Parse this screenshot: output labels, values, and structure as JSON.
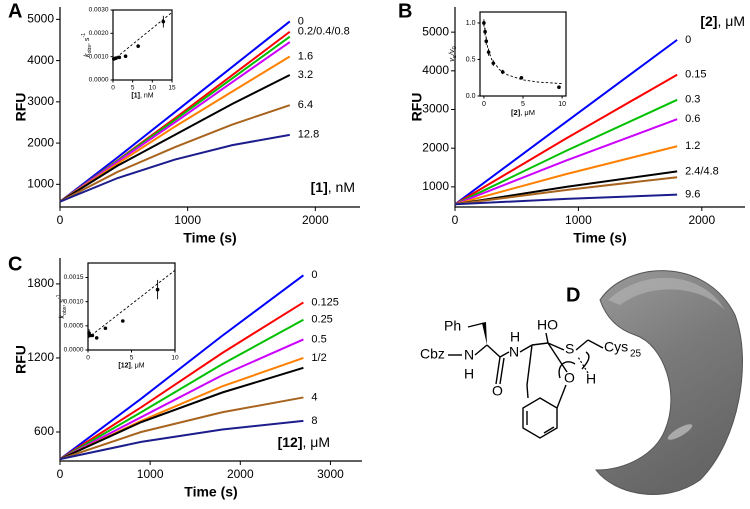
{
  "chart_data": [
    {
      "type": "line",
      "panel": "A",
      "xlabel": "Time (s)",
      "ylabel": "RFU",
      "annotation": [
        {
          "text": "[1]",
          "style": "bold"
        },
        {
          "text": ", nM",
          "style": "plain"
        }
      ],
      "xlim": [
        0,
        2350
      ],
      "ylim": [
        450,
        5300
      ],
      "xticks": [
        0,
        1000,
        2000
      ],
      "yticks": [
        1000,
        2000,
        3000,
        4000,
        5000
      ],
      "x": [
        0,
        450,
        900,
        1350,
        1800
      ],
      "series": [
        {
          "name": "0",
          "color": "#0000ff",
          "values": [
            580,
            1650,
            2750,
            3850,
            4950
          ]
        },
        {
          "name": "0.2/0.4/0.8",
          "color": "#ff0000",
          "values": [
            580,
            1580,
            2600,
            3650,
            4700
          ]
        },
        {
          "color": "#00c000",
          "values": [
            580,
            1570,
            2560,
            3570,
            4580
          ]
        },
        {
          "color": "#cc00ff",
          "values": [
            580,
            1550,
            2500,
            3480,
            4450
          ]
        },
        {
          "name": "1.6",
          "color": "#ff8000",
          "values": [
            580,
            1500,
            2400,
            3250,
            4100
          ]
        },
        {
          "name": "3.2",
          "color": "#000000",
          "values": [
            580,
            1450,
            2200,
            2950,
            3650
          ]
        },
        {
          "name": "6.4",
          "color": "#a8641e",
          "values": [
            580,
            1300,
            1900,
            2450,
            2920
          ]
        },
        {
          "name": "12.8",
          "color": "#1c1c8c",
          "values": [
            580,
            1150,
            1600,
            1950,
            2200
          ]
        }
      ],
      "inset": {
        "type": "scatter",
        "xlabel": [
          {
            "text": "[1]",
            "style": "bold"
          },
          {
            "text": ", nM",
            "style": "plain"
          }
        ],
        "ylabel": [
          {
            "text": "k",
            "style": "italic"
          },
          {
            "text": "obs",
            "style": "sub"
          },
          {
            "text": ", s",
            "style": "plain"
          },
          {
            "text": "-1",
            "style": "sup"
          }
        ],
        "xlim": [
          0,
          15
        ],
        "ylim": [
          0,
          0.003
        ],
        "xticks": [
          0,
          5,
          10,
          15
        ],
        "yticks": [
          {
            "value": 0,
            "label": "0.0000"
          },
          {
            "value": 0.001,
            "label": "0.0010"
          },
          {
            "value": 0.002,
            "label": "0.0020"
          },
          {
            "value": 0.003,
            "label": "0.0030"
          }
        ],
        "x": [
          0.2,
          0.4,
          0.8,
          1.6,
          3.2,
          6.4,
          12.8
        ],
        "values": [
          0.0009,
          0.00092,
          0.00094,
          0.00097,
          0.00102,
          0.00145,
          0.0025
        ],
        "errors": [
          5e-05,
          0,
          0,
          0,
          0,
          8e-05,
          0.00025
        ],
        "fit": {
          "x": [
            0,
            15
          ],
          "values": [
            0.00085,
            0.0029
          ]
        }
      }
    },
    {
      "type": "line",
      "panel": "B",
      "xlabel": "Time (s)",
      "ylabel": "RFU",
      "annotation": [
        {
          "text": "[2]",
          "style": "bold"
        },
        {
          "text": ", μM",
          "style": "plain"
        }
      ],
      "xlim": [
        0,
        2350
      ],
      "ylim": [
        480,
        5650
      ],
      "xticks": [
        0,
        1000,
        2000
      ],
      "yticks": [
        1000,
        2000,
        3000,
        4000,
        5000
      ],
      "x": [
        0,
        900,
        1800
      ],
      "series": [
        {
          "name": "0",
          "color": "#0000ff",
          "values": [
            550,
            2680,
            4800
          ]
        },
        {
          "name": "0.15",
          "color": "#ff0000",
          "values": [
            550,
            2250,
            3900
          ]
        },
        {
          "name": "0.3",
          "color": "#00c000",
          "values": [
            550,
            1930,
            3250
          ]
        },
        {
          "name": "0.6",
          "color": "#cc00ff",
          "values": [
            550,
            1680,
            2750
          ]
        },
        {
          "name": "1.2",
          "color": "#ff8000",
          "values": [
            550,
            1330,
            2050
          ]
        },
        {
          "name": "2.4/4.8",
          "color": "#000000",
          "values": [
            550,
            1000,
            1400
          ]
        },
        {
          "color": "#a8641e",
          "values": [
            550,
            920,
            1250
          ]
        },
        {
          "name": "9.6",
          "color": "#1c1c8c",
          "values": [
            550,
            690,
            800
          ]
        }
      ],
      "inset": {
        "type": "scatter",
        "xlabel": [
          {
            "text": "[2]",
            "style": "bold"
          },
          {
            "text": ", μM",
            "style": "plain"
          }
        ],
        "ylabel": [
          {
            "text": "v",
            "style": "italic"
          },
          {
            "text": "s",
            "style": "sub"
          },
          {
            "text": "/v",
            "style": "italic"
          },
          {
            "text": "0",
            "style": "sub"
          }
        ],
        "xlim": [
          -0.5,
          10.5
        ],
        "ylim": [
          0,
          1.15
        ],
        "xticks": [
          0,
          5,
          10
        ],
        "yticks": [
          {
            "value": 0,
            "label": "0.0"
          },
          {
            "value": 0.5,
            "label": "0.5"
          },
          {
            "value": 1,
            "label": "1.0"
          }
        ],
        "x": [
          0,
          0.15,
          0.3,
          0.6,
          1.2,
          2.4,
          4.8,
          9.6
        ],
        "values": [
          1.0,
          0.88,
          0.75,
          0.6,
          0.45,
          0.33,
          0.25,
          0.12
        ],
        "errors": [
          0.05,
          0.05,
          0.05,
          0.05,
          0.04,
          0.03,
          0.02,
          0.02
        ],
        "fit": {
          "x": [
            0,
            0.5,
            1,
            2,
            3,
            5,
            7,
            10
          ],
          "values": [
            1.0,
            0.65,
            0.5,
            0.36,
            0.29,
            0.22,
            0.19,
            0.17
          ]
        }
      }
    },
    {
      "type": "line",
      "panel": "C",
      "xlabel": "Time (s)",
      "ylabel": "RFU",
      "annotation": [
        {
          "text": "[12]",
          "style": "bold"
        },
        {
          "text": ", μM",
          "style": "plain"
        }
      ],
      "xlim": [
        0,
        3350
      ],
      "ylim": [
        365,
        2010
      ],
      "xticks": [
        0,
        1000,
        2000,
        3000
      ],
      "yticks": [
        600,
        1200,
        1800
      ],
      "x": [
        0,
        900,
        1800,
        2700
      ],
      "series": [
        {
          "name": "0",
          "color": "#0000ff",
          "values": [
            380,
            870,
            1380,
            1870
          ]
        },
        {
          "name": "0.125",
          "color": "#ff0000",
          "values": [
            380,
            800,
            1240,
            1650
          ]
        },
        {
          "name": "0.25",
          "color": "#00c000",
          "values": [
            380,
            760,
            1150,
            1510
          ]
        },
        {
          "name": "0.5",
          "color": "#cc00ff",
          "values": [
            380,
            720,
            1060,
            1350
          ]
        },
        {
          "name": "1/2",
          "color": "#ff8000",
          "values": [
            380,
            690,
            970,
            1200
          ]
        },
        {
          "color": "#000000",
          "values": [
            380,
            680,
            920,
            1120
          ]
        },
        {
          "name": "4",
          "color": "#a8641e",
          "values": [
            380,
            600,
            760,
            880
          ]
        },
        {
          "name": "8",
          "color": "#1c1c8c",
          "values": [
            380,
            520,
            620,
            690
          ]
        }
      ],
      "inset": {
        "type": "scatter",
        "xlabel": [
          {
            "text": "[12]",
            "style": "bold"
          },
          {
            "text": ", μM",
            "style": "plain"
          }
        ],
        "ylabel": [
          {
            "text": "k",
            "style": "italic"
          },
          {
            "text": "obs",
            "style": "sub"
          },
          {
            "text": ", s",
            "style": "plain"
          },
          {
            "text": "-1",
            "style": "sup"
          }
        ],
        "xlim": [
          0,
          10
        ],
        "ylim": [
          0,
          0.0018
        ],
        "xticks": [
          0,
          5,
          10
        ],
        "yticks": [
          {
            "value": 0,
            "label": "0.0000"
          },
          {
            "value": 0.0005,
            "label": "0.0005"
          },
          {
            "value": 0.001,
            "label": "0.0010"
          },
          {
            "value": 0.0015,
            "label": "0.0015"
          }
        ],
        "x": [
          0.125,
          0.25,
          0.5,
          1,
          2,
          4,
          8
        ],
        "values": [
          0.00035,
          0.0003,
          0.0003,
          0.00025,
          0.00045,
          0.0006,
          0.00125
        ],
        "errors": [
          8e-05,
          0,
          0,
          0,
          0,
          0,
          0.0002
        ],
        "fit": {
          "x": [
            0,
            10
          ],
          "values": [
            0.00025,
            0.00165
          ]
        }
      }
    }
  ],
  "diagram": {
    "panel": "D",
    "labels": [
      "Ph",
      "Cbz",
      "N",
      "H",
      "O",
      "H",
      "N",
      "HO",
      "S",
      "Cys",
      "25",
      "O",
      "H"
    ]
  }
}
